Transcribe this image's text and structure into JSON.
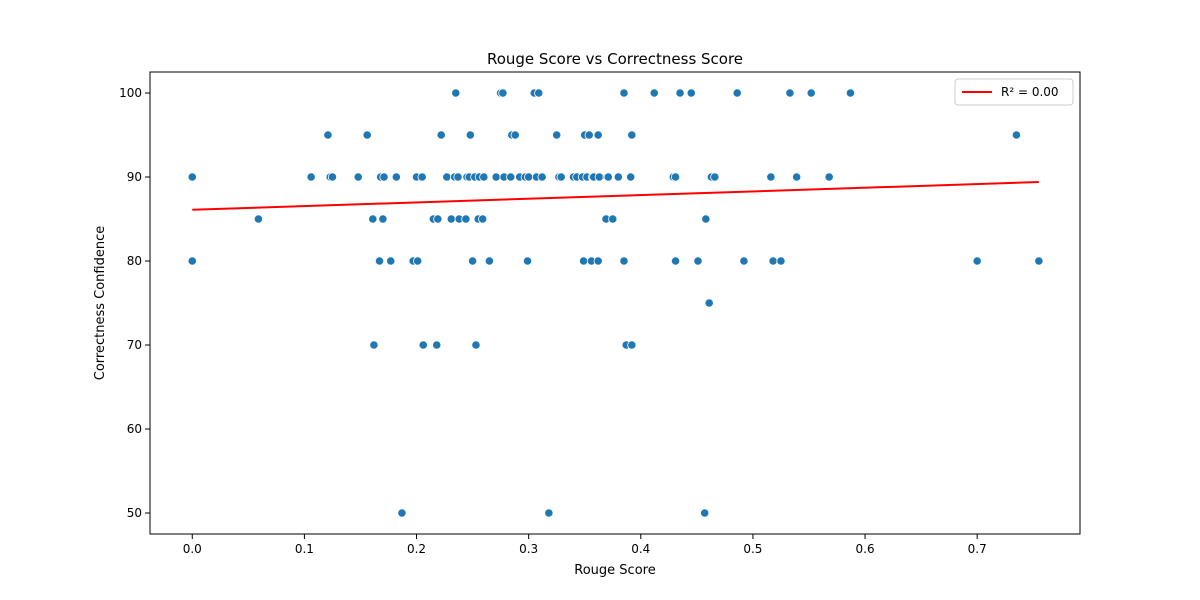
{
  "chart_data": {
    "type": "scatter",
    "title": "Rouge Score vs Correctness Score",
    "xlabel": "Rouge Score",
    "ylabel": "Correctness Confidence",
    "xlim": [
      -0.0377,
      0.7917
    ],
    "ylim": [
      47.5,
      102.5
    ],
    "xticks": [
      0.0,
      0.1,
      0.2,
      0.3,
      0.4,
      0.5,
      0.6,
      0.7
    ],
    "xtick_labels": [
      "0.0",
      "0.1",
      "0.2",
      "0.3",
      "0.4",
      "0.5",
      "0.6",
      "0.7"
    ],
    "yticks": [
      50,
      60,
      70,
      80,
      90,
      100
    ],
    "ytick_labels": [
      "50",
      "60",
      "70",
      "80",
      "90",
      "100"
    ],
    "grid": false,
    "legend_position": "top-right",
    "point_color": "#1f77b4",
    "line_color": "#ff0000",
    "series": [
      {
        "type": "scatter",
        "x": [
          0.0,
          0.0,
          0.059,
          0.106,
          0.121,
          0.123,
          0.125,
          0.148,
          0.156,
          0.161,
          0.162,
          0.167,
          0.168,
          0.17,
          0.171,
          0.177,
          0.182,
          0.187,
          0.197,
          0.2,
          0.201,
          0.205,
          0.206,
          0.215,
          0.218,
          0.219,
          0.222,
          0.227,
          0.231,
          0.234,
          0.235,
          0.237,
          0.238,
          0.244,
          0.245,
          0.247,
          0.248,
          0.25,
          0.252,
          0.253,
          0.255,
          0.256,
          0.259,
          0.26,
          0.265,
          0.271,
          0.275,
          0.277,
          0.278,
          0.284,
          0.285,
          0.288,
          0.292,
          0.297,
          0.299,
          0.3,
          0.305,
          0.307,
          0.309,
          0.312,
          0.318,
          0.325,
          0.327,
          0.329,
          0.34,
          0.343,
          0.348,
          0.349,
          0.35,
          0.352,
          0.354,
          0.356,
          0.357,
          0.358,
          0.362,
          0.362,
          0.363,
          0.369,
          0.37,
          0.371,
          0.375,
          0.38,
          0.385,
          0.385,
          0.387,
          0.391,
          0.392,
          0.392,
          0.412,
          0.429,
          0.431,
          0.431,
          0.435,
          0.445,
          0.451,
          0.457,
          0.458,
          0.461,
          0.463,
          0.466,
          0.486,
          0.492,
          0.516,
          0.518,
          0.525,
          0.533,
          0.539,
          0.552,
          0.568,
          0.587,
          0.7,
          0.735,
          0.755
        ],
        "y": [
          90,
          80,
          85,
          90,
          95,
          90,
          90,
          90,
          95,
          85,
          70,
          80,
          90,
          85,
          90,
          80,
          90,
          50,
          80,
          90,
          80,
          90,
          70,
          85,
          70,
          85,
          95,
          90,
          85,
          90,
          100,
          90,
          85,
          85,
          90,
          90,
          95,
          80,
          90,
          70,
          85,
          90,
          85,
          90,
          80,
          90,
          100,
          100,
          90,
          90,
          95,
          95,
          90,
          90,
          80,
          90,
          100,
          90,
          100,
          90,
          50,
          95,
          90,
          90,
          90,
          90,
          90,
          80,
          95,
          90,
          95,
          80,
          90,
          90,
          95,
          80,
          90,
          85,
          90,
          90,
          85,
          90,
          80,
          100,
          70,
          90,
          95,
          70,
          100,
          90,
          80,
          90,
          100,
          100,
          80,
          50,
          85,
          75,
          90,
          90,
          100,
          80,
          90,
          80,
          80,
          100,
          90,
          100,
          90,
          100,
          80,
          95,
          80
        ]
      },
      {
        "type": "line",
        "name": "R² = 0.00",
        "x": [
          0.0,
          0.755
        ],
        "y": [
          86.1,
          89.4
        ]
      }
    ]
  }
}
